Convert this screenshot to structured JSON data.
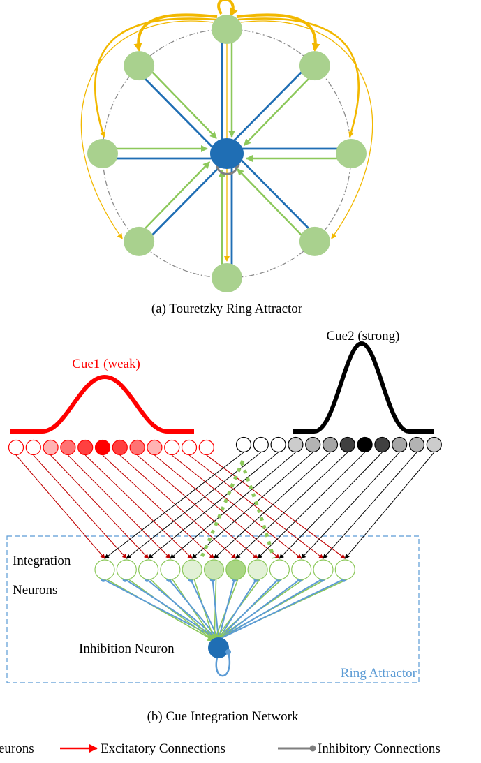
{
  "captions": {
    "a": "(a) Touretzky Ring Attractor",
    "b": "(b) Cue Integration Network"
  },
  "labels": {
    "cue1": "Cue1 (weak)",
    "cue2": "Cue2 (strong)",
    "integration_line1": "Integration",
    "integration_line2": "Neurons",
    "inhibition": "Inhibition Neuron",
    "ring_attractor": "Ring Attractor"
  },
  "legend": {
    "neurons": "eurons",
    "excitatory": "Excitatory Connections",
    "inhibitory": "Inhibitory Connections"
  },
  "colors": {
    "excitatory_ring": "#f2b800",
    "excitatory_green": "#8cc85a",
    "inhibitory_blue": "#1f6eb4",
    "inhibitory_light_blue": "#5b9bd5",
    "neuron_green": "#a9d18e",
    "inhibition_neuron": "#1f6eb4",
    "cue1": "#ff0000",
    "cue2": "#000000",
    "box_dash": "#5b9bd5"
  },
  "cue1_activation": [
    0,
    0,
    0.3,
    0.55,
    0.75,
    1,
    0.75,
    0.55,
    0.3,
    0,
    0,
    0
  ],
  "cue2_activation": [
    0,
    0,
    0,
    0.2,
    0.3,
    0.35,
    0.75,
    1,
    0.75,
    0.35,
    0.3,
    0.2
  ],
  "integration_activation": [
    0,
    0,
    0,
    0,
    0.25,
    0.45,
    0.75,
    0.25,
    0,
    0,
    0,
    0
  ]
}
